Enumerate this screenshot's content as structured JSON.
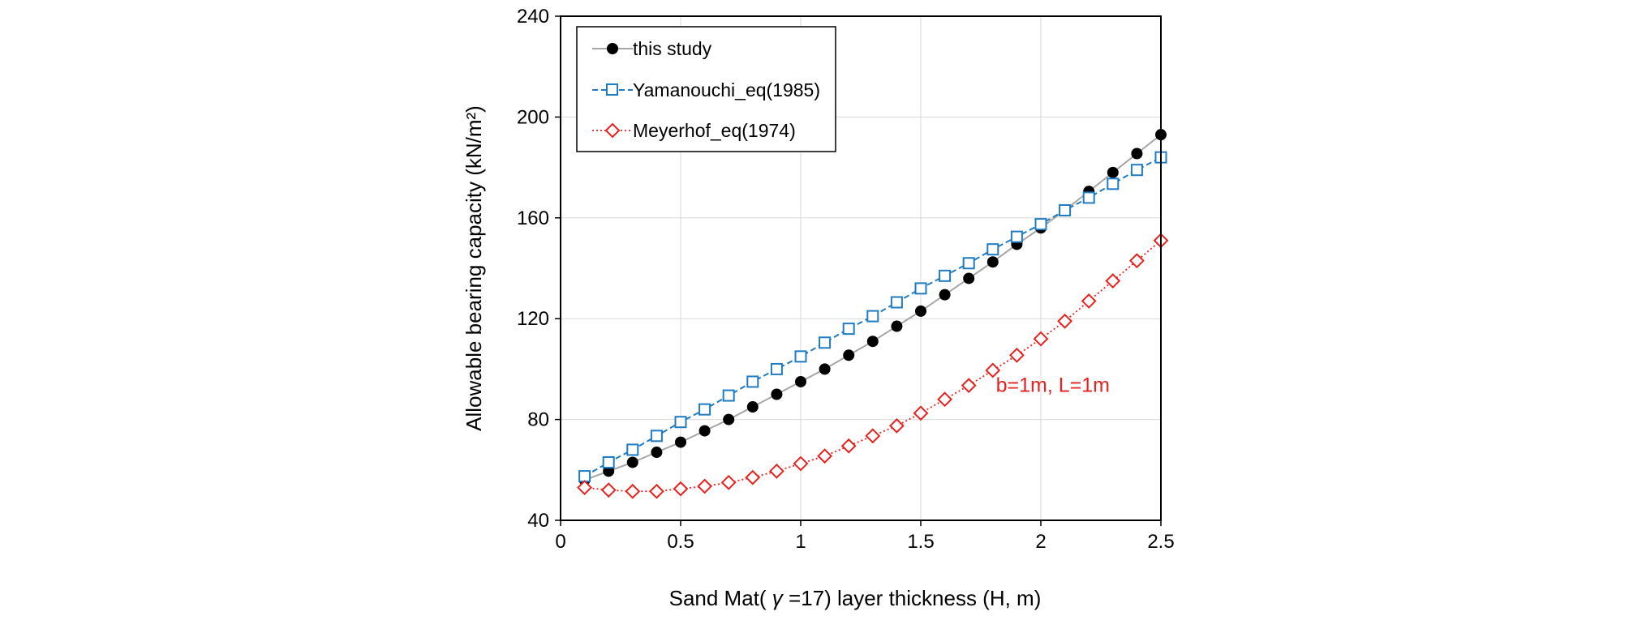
{
  "chart_data": {
    "type": "line",
    "xlabel_parts": [
      "Sand Mat( ",
      "γ",
      " =17) layer thickness (H, m)"
    ],
    "ylabel": "Allowable bearing capacity (kN/m²)",
    "xlim": [
      0,
      2.5
    ],
    "ylim": [
      40,
      240
    ],
    "xticks": [
      "0",
      "0.5",
      "1",
      "1.5",
      "2",
      "2.5"
    ],
    "yticks": [
      "40",
      "80",
      "120",
      "160",
      "200",
      "240"
    ],
    "grid": true,
    "legend_position": "top-left",
    "annotation": {
      "text": "b=1m, L=1m",
      "color": "#e8231f",
      "x": 2.05,
      "y": 91
    },
    "x": [
      0.1,
      0.2,
      0.3,
      0.4,
      0.5,
      0.6,
      0.7,
      0.8,
      0.9,
      1.0,
      1.1,
      1.2,
      1.3,
      1.4,
      1.5,
      1.6,
      1.7,
      1.8,
      1.9,
      2.0,
      2.1,
      2.2,
      2.3,
      2.4,
      2.5
    ],
    "series": [
      {
        "name": "this study",
        "marker": "filled-circle",
        "line_style": "solid",
        "color": "#000000",
        "line_color": "#a6a6a6",
        "values": [
          56,
          59.5,
          63,
          67,
          71,
          75.5,
          80,
          85,
          90,
          95,
          100,
          105.5,
          111,
          117,
          123,
          129.5,
          136,
          142.5,
          149.5,
          156,
          163,
          170.5,
          178,
          185.5,
          193
        ]
      },
      {
        "name": "Yamanouchi_eq(1985)",
        "marker": "open-square",
        "line_style": "dashed",
        "color": "#1f7bc4",
        "line_color": "#1f7bc4",
        "values": [
          57.5,
          63,
          68,
          73.5,
          79,
          84,
          89.5,
          95,
          100,
          105,
          110.5,
          116,
          121,
          126.5,
          132,
          137,
          142,
          147.5,
          152.5,
          157.5,
          163,
          168,
          173.5,
          179,
          184
        ]
      },
      {
        "name": "Meyerhof_eq(1974)",
        "marker": "open-diamond",
        "line_style": "dotted",
        "color": "#e8231f",
        "line_color": "#e8231f",
        "values": [
          53,
          52,
          51.5,
          51.5,
          52.5,
          53.5,
          55,
          57,
          59.5,
          62.5,
          65.5,
          69.5,
          73.5,
          77.5,
          82.5,
          88,
          93.5,
          99.5,
          105.5,
          112,
          119,
          127,
          135,
          143,
          151
        ]
      }
    ]
  }
}
